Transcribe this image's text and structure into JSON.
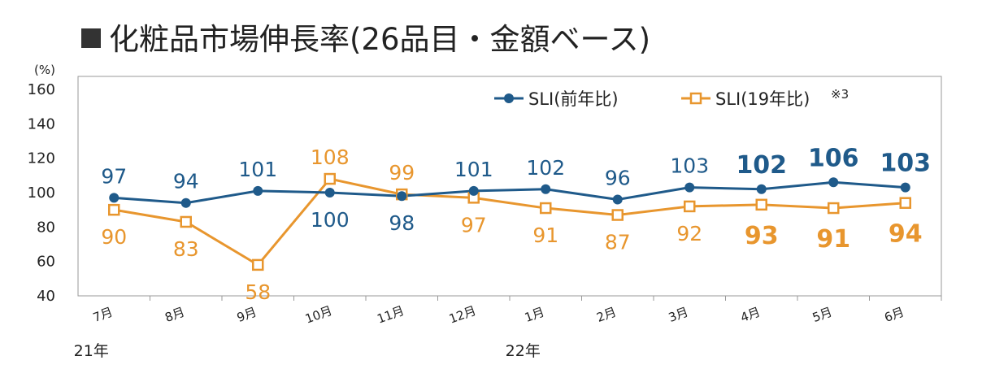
{
  "chart_data": {
    "type": "line",
    "title": "化粧品市場伸長率(26品目・金額ベース)",
    "ylabel": "(%)",
    "ylim": [
      40,
      160
    ],
    "yticks": [
      40,
      60,
      80,
      100,
      120,
      140,
      160
    ],
    "categories": [
      "7月",
      "8月",
      "9月",
      "10月",
      "11月",
      "12月",
      "1月",
      "2月",
      "3月",
      "4月",
      "5月",
      "6月"
    ],
    "year_labels": [
      {
        "label": "21年",
        "category": "7月"
      },
      {
        "label": "22年",
        "category": "1月"
      }
    ],
    "series": [
      {
        "name": "SLI(前年比)",
        "color": "#1f5a8a",
        "marker": "circle",
        "values": [
          97,
          94,
          101,
          100,
          98,
          101,
          102,
          96,
          103,
          102,
          106,
          103
        ],
        "labels": [
          "97",
          "94",
          "101",
          "100",
          "98",
          "101",
          "102",
          "96",
          "103",
          "102",
          "106",
          "103"
        ]
      },
      {
        "name": "SLI(19年比)",
        "superscript": "※3",
        "color": "#e8962e",
        "marker": "square",
        "values": [
          90,
          83,
          58,
          108,
          99,
          97,
          91,
          87,
          92,
          93,
          91,
          94
        ],
        "labels": [
          "90",
          "83",
          "58",
          "108",
          "99",
          "97",
          "91",
          "87",
          "92",
          "93",
          "91",
          "94"
        ]
      }
    ],
    "bold_labels_from": "4月",
    "grid": false,
    "legend_position": "top-right"
  }
}
